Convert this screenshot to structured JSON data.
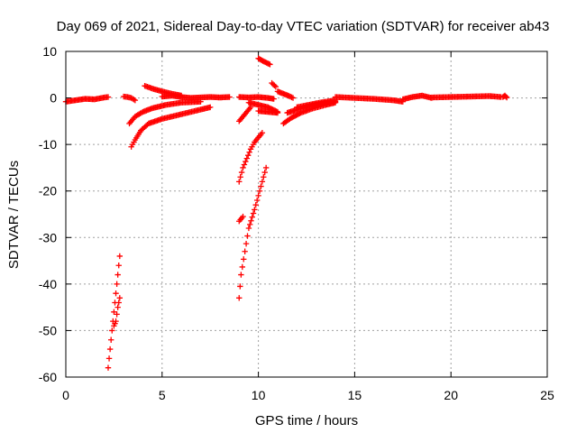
{
  "chart_data": {
    "type": "scatter",
    "title": "Day 069 of 2021, Sidereal Day-to-day VTEC variation (SDTVAR) for receiver ab43",
    "xlabel": "GPS time / hours",
    "ylabel": "SDTVAR / TECUs",
    "xlim": [
      0,
      25
    ],
    "ylim": [
      -60,
      10
    ],
    "xticks": [
      "0",
      "5",
      "10",
      "15",
      "20",
      "25"
    ],
    "yticks": [
      "10",
      "0",
      "-10",
      "-20",
      "-30",
      "-40",
      "-50",
      "-60"
    ],
    "grid": true,
    "marker": "plus",
    "color": "#ff0000",
    "segments": [
      {
        "x": [
          0.0,
          0.5,
          1.0,
          1.5,
          2.0,
          2.2
        ],
        "y": [
          -0.8,
          -0.5,
          -0.2,
          -0.3,
          0.1,
          0.2
        ]
      },
      {
        "x": [
          2.2,
          2.3,
          2.4,
          2.5,
          2.6,
          2.7,
          2.8
        ],
        "y": [
          -58,
          -54,
          -50,
          -46,
          -42,
          -38,
          -34
        ]
      },
      {
        "x": [
          2.5,
          2.6,
          2.7,
          2.8
        ],
        "y": [
          -49,
          -48,
          -45,
          -43
        ]
      },
      {
        "x": [
          3.0,
          3.2,
          3.4,
          3.6
        ],
        "y": [
          0.3,
          0.2,
          0.0,
          -0.5
        ]
      },
      {
        "x": [
          3.4,
          3.6,
          3.9,
          4.3,
          5.0,
          6.0,
          7.0,
          7.5
        ],
        "y": [
          -10.5,
          -9,
          -7,
          -5.5,
          -4.5,
          -3.5,
          -2.5,
          -2.0
        ]
      },
      {
        "x": [
          3.3,
          3.6,
          4.0,
          4.5,
          5.2,
          6.0,
          7.0
        ],
        "y": [
          -5.5,
          -4,
          -3,
          -2.2,
          -1.5,
          -1.0,
          -0.8
        ]
      },
      {
        "x": [
          4.1,
          4.5,
          5.0,
          5.5,
          6.0
        ],
        "y": [
          2.6,
          2.0,
          1.4,
          0.9,
          0.5
        ]
      },
      {
        "x": [
          5.0,
          5.5,
          6.0,
          6.5,
          7.0,
          7.5,
          8.0,
          8.5
        ],
        "y": [
          0.3,
          0.5,
          0.2,
          0.0,
          0.1,
          0.2,
          0.1,
          0.2
        ]
      },
      {
        "x": [
          9.0,
          9.1,
          9.3,
          9.5,
          9.8,
          10.0,
          10.2,
          10.4
        ],
        "y": [
          -43,
          -38,
          -33,
          -28,
          -24,
          -21,
          -18,
          -15
        ]
      },
      {
        "x": [
          9.0,
          9.2,
          9.4,
          9.6,
          9.8,
          10.0,
          10.2
        ],
        "y": [
          -18,
          -15,
          -13,
          -11,
          -9.5,
          -8.5,
          -7.5
        ]
      },
      {
        "x": [
          9.0,
          9.2
        ],
        "y": [
          -26.5,
          -25.5
        ]
      },
      {
        "x": [
          9.0,
          9.3,
          9.6
        ],
        "y": [
          -5.0,
          -3.5,
          -2.0
        ]
      },
      {
        "x": [
          9.0,
          9.5,
          10.0,
          10.5,
          10.8
        ],
        "y": [
          0.2,
          0.1,
          0.2,
          0.0,
          -0.2
        ]
      },
      {
        "x": [
          10.0,
          10.3,
          10.6
        ],
        "y": [
          8.5,
          7.8,
          7.2
        ]
      },
      {
        "x": [
          10.7,
          10.9
        ],
        "y": [
          3.2,
          2.4
        ]
      },
      {
        "x": [
          11.0,
          11.3,
          11.6,
          11.8
        ],
        "y": [
          1.4,
          0.9,
          0.4,
          0.0
        ]
      },
      {
        "x": [
          9.5,
          10.0,
          10.5,
          11.0
        ],
        "y": [
          -1.0,
          -1.5,
          -2.0,
          -3.0
        ]
      },
      {
        "x": [
          10.0,
          10.5,
          11.0
        ],
        "y": [
          -2.8,
          -3.0,
          -3.2
        ]
      },
      {
        "x": [
          11.3,
          11.7,
          12.2,
          12.8,
          13.5,
          14.0
        ],
        "y": [
          -5.5,
          -4.3,
          -3.2,
          -2.3,
          -1.5,
          -1.0
        ]
      },
      {
        "x": [
          11.5,
          12.0,
          12.6,
          13.3,
          14.0
        ],
        "y": [
          -3.2,
          -2.5,
          -1.8,
          -1.2,
          -0.8
        ]
      },
      {
        "x": [
          12.0,
          12.6,
          13.2,
          14.0
        ],
        "y": [
          -2.0,
          -1.5,
          -1.0,
          -0.5
        ]
      },
      {
        "x": [
          14.0,
          15.0,
          16.0,
          17.0,
          17.5
        ],
        "y": [
          0.2,
          0.0,
          -0.2,
          -0.5,
          -0.8
        ]
      },
      {
        "x": [
          17.5,
          18.0,
          18.5,
          19.0
        ],
        "y": [
          -0.3,
          0.2,
          0.5,
          0.0
        ]
      },
      {
        "x": [
          19.0,
          20.0,
          21.0,
          22.0,
          22.6
        ],
        "y": [
          0.1,
          0.2,
          0.3,
          0.4,
          0.2
        ]
      },
      {
        "x": [
          22.7,
          22.8,
          22.9
        ],
        "y": [
          0.2,
          0.5,
          0.1
        ]
      }
    ]
  }
}
